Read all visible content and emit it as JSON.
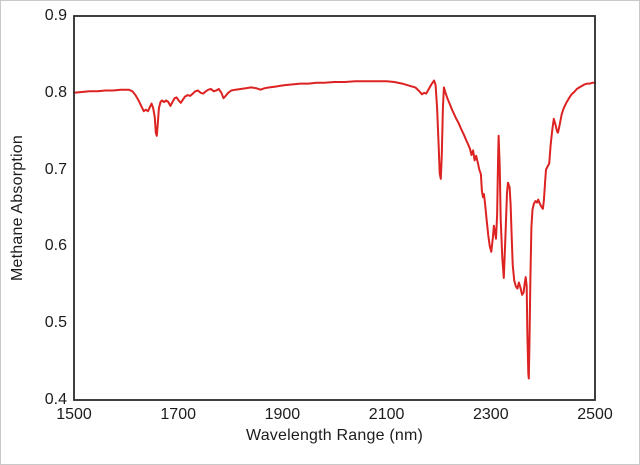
{
  "chart_data": {
    "type": "line",
    "title": "",
    "xlabel": "Wavelength Range (nm)",
    "ylabel": "Methane Absorption",
    "xlim": [
      1500,
      2500
    ],
    "ylim": [
      0.4,
      0.9
    ],
    "x_ticks": [
      "1500",
      "1700",
      "1900",
      "2100",
      "2300",
      "2500"
    ],
    "y_ticks": [
      "0.4",
      "0.5",
      "0.6",
      "0.7",
      "0.8",
      "0.9"
    ],
    "grid": false,
    "legend": "none",
    "line_color": "#dd2222",
    "axis_color": "#2a2a2a",
    "series": [
      {
        "name": "Methane absorption spectrum",
        "points": [
          [
            1500,
            0.8
          ],
          [
            1515,
            0.801
          ],
          [
            1530,
            0.802
          ],
          [
            1545,
            0.802
          ],
          [
            1560,
            0.803
          ],
          [
            1575,
            0.803
          ],
          [
            1590,
            0.804
          ],
          [
            1605,
            0.804
          ],
          [
            1612,
            0.802
          ],
          [
            1618,
            0.797
          ],
          [
            1624,
            0.79
          ],
          [
            1629,
            0.783
          ],
          [
            1634,
            0.776
          ],
          [
            1638,
            0.778
          ],
          [
            1642,
            0.776
          ],
          [
            1646,
            0.782
          ],
          [
            1649,
            0.786
          ],
          [
            1652,
            0.78
          ],
          [
            1655,
            0.768
          ],
          [
            1657,
            0.748
          ],
          [
            1659,
            0.744
          ],
          [
            1661,
            0.762
          ],
          [
            1663,
            0.78
          ],
          [
            1666,
            0.788
          ],
          [
            1669,
            0.79
          ],
          [
            1673,
            0.788
          ],
          [
            1677,
            0.79
          ],
          [
            1681,
            0.788
          ],
          [
            1685,
            0.783
          ],
          [
            1689,
            0.788
          ],
          [
            1693,
            0.793
          ],
          [
            1697,
            0.794
          ],
          [
            1701,
            0.79
          ],
          [
            1705,
            0.787
          ],
          [
            1709,
            0.791
          ],
          [
            1713,
            0.795
          ],
          [
            1718,
            0.797
          ],
          [
            1723,
            0.796
          ],
          [
            1728,
            0.799
          ],
          [
            1733,
            0.802
          ],
          [
            1738,
            0.803
          ],
          [
            1743,
            0.8
          ],
          [
            1748,
            0.799
          ],
          [
            1753,
            0.802
          ],
          [
            1758,
            0.804
          ],
          [
            1763,
            0.805
          ],
          [
            1768,
            0.802
          ],
          [
            1773,
            0.803
          ],
          [
            1778,
            0.805
          ],
          [
            1783,
            0.8
          ],
          [
            1787,
            0.793
          ],
          [
            1791,
            0.796
          ],
          [
            1796,
            0.8
          ],
          [
            1802,
            0.803
          ],
          [
            1810,
            0.804
          ],
          [
            1820,
            0.805
          ],
          [
            1830,
            0.806
          ],
          [
            1840,
            0.807
          ],
          [
            1850,
            0.806
          ],
          [
            1858,
            0.804
          ],
          [
            1866,
            0.806
          ],
          [
            1875,
            0.807
          ],
          [
            1885,
            0.808
          ],
          [
            1895,
            0.809
          ],
          [
            1905,
            0.81
          ],
          [
            1920,
            0.811
          ],
          [
            1935,
            0.812
          ],
          [
            1950,
            0.812
          ],
          [
            1965,
            0.813
          ],
          [
            1980,
            0.813
          ],
          [
            2000,
            0.814
          ],
          [
            2020,
            0.814
          ],
          [
            2040,
            0.815
          ],
          [
            2060,
            0.815
          ],
          [
            2080,
            0.815
          ],
          [
            2100,
            0.815
          ],
          [
            2115,
            0.814
          ],
          [
            2130,
            0.812
          ],
          [
            2145,
            0.809
          ],
          [
            2155,
            0.807
          ],
          [
            2163,
            0.802
          ],
          [
            2168,
            0.798
          ],
          [
            2172,
            0.8
          ],
          [
            2176,
            0.799
          ],
          [
            2181,
            0.805
          ],
          [
            2186,
            0.811
          ],
          [
            2191,
            0.816
          ],
          [
            2194,
            0.81
          ],
          [
            2197,
            0.78
          ],
          [
            2200,
            0.73
          ],
          [
            2202,
            0.695
          ],
          [
            2204,
            0.688
          ],
          [
            2206,
            0.72
          ],
          [
            2208,
            0.78
          ],
          [
            2210,
            0.807
          ],
          [
            2213,
            0.8
          ],
          [
            2217,
            0.792
          ],
          [
            2221,
            0.786
          ],
          [
            2225,
            0.779
          ],
          [
            2229,
            0.773
          ],
          [
            2233,
            0.767
          ],
          [
            2238,
            0.761
          ],
          [
            2243,
            0.753
          ],
          [
            2248,
            0.746
          ],
          [
            2253,
            0.738
          ],
          [
            2257,
            0.732
          ],
          [
            2260,
            0.727
          ],
          [
            2263,
            0.719
          ],
          [
            2266,
            0.725
          ],
          [
            2269,
            0.712
          ],
          [
            2272,
            0.718
          ],
          [
            2275,
            0.709
          ],
          [
            2278,
            0.7
          ],
          [
            2281,
            0.694
          ],
          [
            2283,
            0.672
          ],
          [
            2285,
            0.664
          ],
          [
            2287,
            0.668
          ],
          [
            2289,
            0.655
          ],
          [
            2292,
            0.635
          ],
          [
            2295,
            0.615
          ],
          [
            2298,
            0.6
          ],
          [
            2301,
            0.593
          ],
          [
            2304,
            0.612
          ],
          [
            2306,
            0.627
          ],
          [
            2308,
            0.618
          ],
          [
            2310,
            0.61
          ],
          [
            2312,
            0.64
          ],
          [
            2314,
            0.715
          ],
          [
            2315,
            0.744
          ],
          [
            2317,
            0.705
          ],
          [
            2319,
            0.635
          ],
          [
            2322,
            0.585
          ],
          [
            2325,
            0.559
          ],
          [
            2328,
            0.612
          ],
          [
            2331,
            0.67
          ],
          [
            2333,
            0.683
          ],
          [
            2336,
            0.677
          ],
          [
            2338,
            0.655
          ],
          [
            2340,
            0.616
          ],
          [
            2342,
            0.576
          ],
          [
            2345,
            0.556
          ],
          [
            2348,
            0.548
          ],
          [
            2351,
            0.545
          ],
          [
            2354,
            0.553
          ],
          [
            2357,
            0.546
          ],
          [
            2360,
            0.537
          ],
          [
            2363,
            0.54
          ],
          [
            2365,
            0.552
          ],
          [
            2367,
            0.56
          ],
          [
            2369,
            0.548
          ],
          [
            2370,
            0.49
          ],
          [
            2372,
            0.435
          ],
          [
            2373,
            0.428
          ],
          [
            2374,
            0.47
          ],
          [
            2376,
            0.558
          ],
          [
            2378,
            0.625
          ],
          [
            2380,
            0.648
          ],
          [
            2383,
            0.656
          ],
          [
            2386,
            0.659
          ],
          [
            2389,
            0.657
          ],
          [
            2391,
            0.661
          ],
          [
            2394,
            0.656
          ],
          [
            2397,
            0.652
          ],
          [
            2400,
            0.649
          ],
          [
            2402,
            0.66
          ],
          [
            2404,
            0.682
          ],
          [
            2406,
            0.7
          ],
          [
            2409,
            0.704
          ],
          [
            2412,
            0.708
          ],
          [
            2415,
            0.733
          ],
          [
            2418,
            0.752
          ],
          [
            2421,
            0.766
          ],
          [
            2424,
            0.759
          ],
          [
            2427,
            0.75
          ],
          [
            2429,
            0.748
          ],
          [
            2432,
            0.758
          ],
          [
            2436,
            0.772
          ],
          [
            2440,
            0.78
          ],
          [
            2445,
            0.787
          ],
          [
            2450,
            0.793
          ],
          [
            2455,
            0.798
          ],
          [
            2460,
            0.801
          ],
          [
            2465,
            0.805
          ],
          [
            2470,
            0.807
          ],
          [
            2475,
            0.809
          ],
          [
            2480,
            0.811
          ],
          [
            2485,
            0.812
          ],
          [
            2490,
            0.812
          ],
          [
            2495,
            0.813
          ],
          [
            2500,
            0.813
          ]
        ]
      }
    ]
  }
}
